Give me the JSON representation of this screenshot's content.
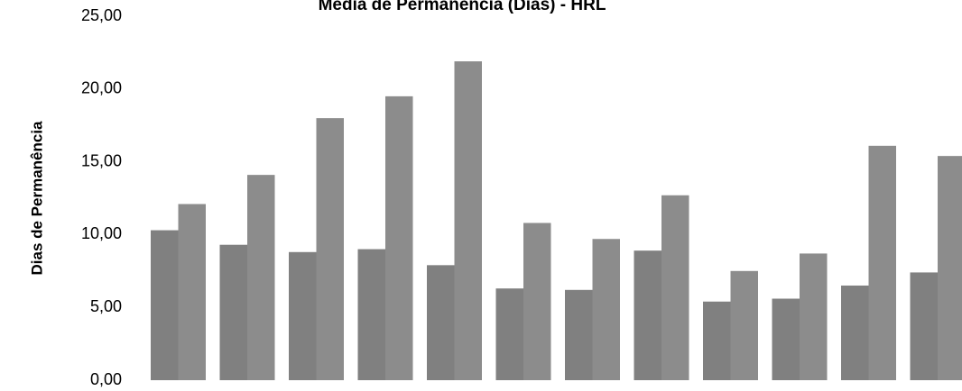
{
  "chart_data": {
    "type": "bar",
    "title": "Média de Permanência (Dias) - HRL",
    "y_label": "Dias de Permanência",
    "categories": [
      null,
      null,
      null,
      null,
      null,
      null,
      null,
      null,
      null,
      null,
      null,
      null
    ],
    "series": [
      {
        "color": "#808080",
        "values": [
          10.3,
          9.3,
          8.8,
          9.0,
          7.9,
          6.3,
          6.2,
          8.9,
          5.4,
          5.6,
          6.5,
          7.4
        ]
      },
      {
        "color": "#8c8c8c",
        "values": [
          12.1,
          14.1,
          18.0,
          19.5,
          21.9,
          10.8,
          9.7,
          12.7,
          7.5,
          8.7,
          16.1,
          15.4
        ]
      }
    ],
    "ylim": [
      0,
      25
    ],
    "yticks": [
      {
        "value": 0,
        "label": "0,00"
      },
      {
        "value": 5,
        "label": "5,00"
      },
      {
        "value": 10,
        "label": "10,00"
      },
      {
        "value": 15,
        "label": "15,00"
      },
      {
        "value": 20,
        "label": "20,00"
      },
      {
        "value": 25,
        "label": "25,00"
      }
    ],
    "grid": false
  }
}
